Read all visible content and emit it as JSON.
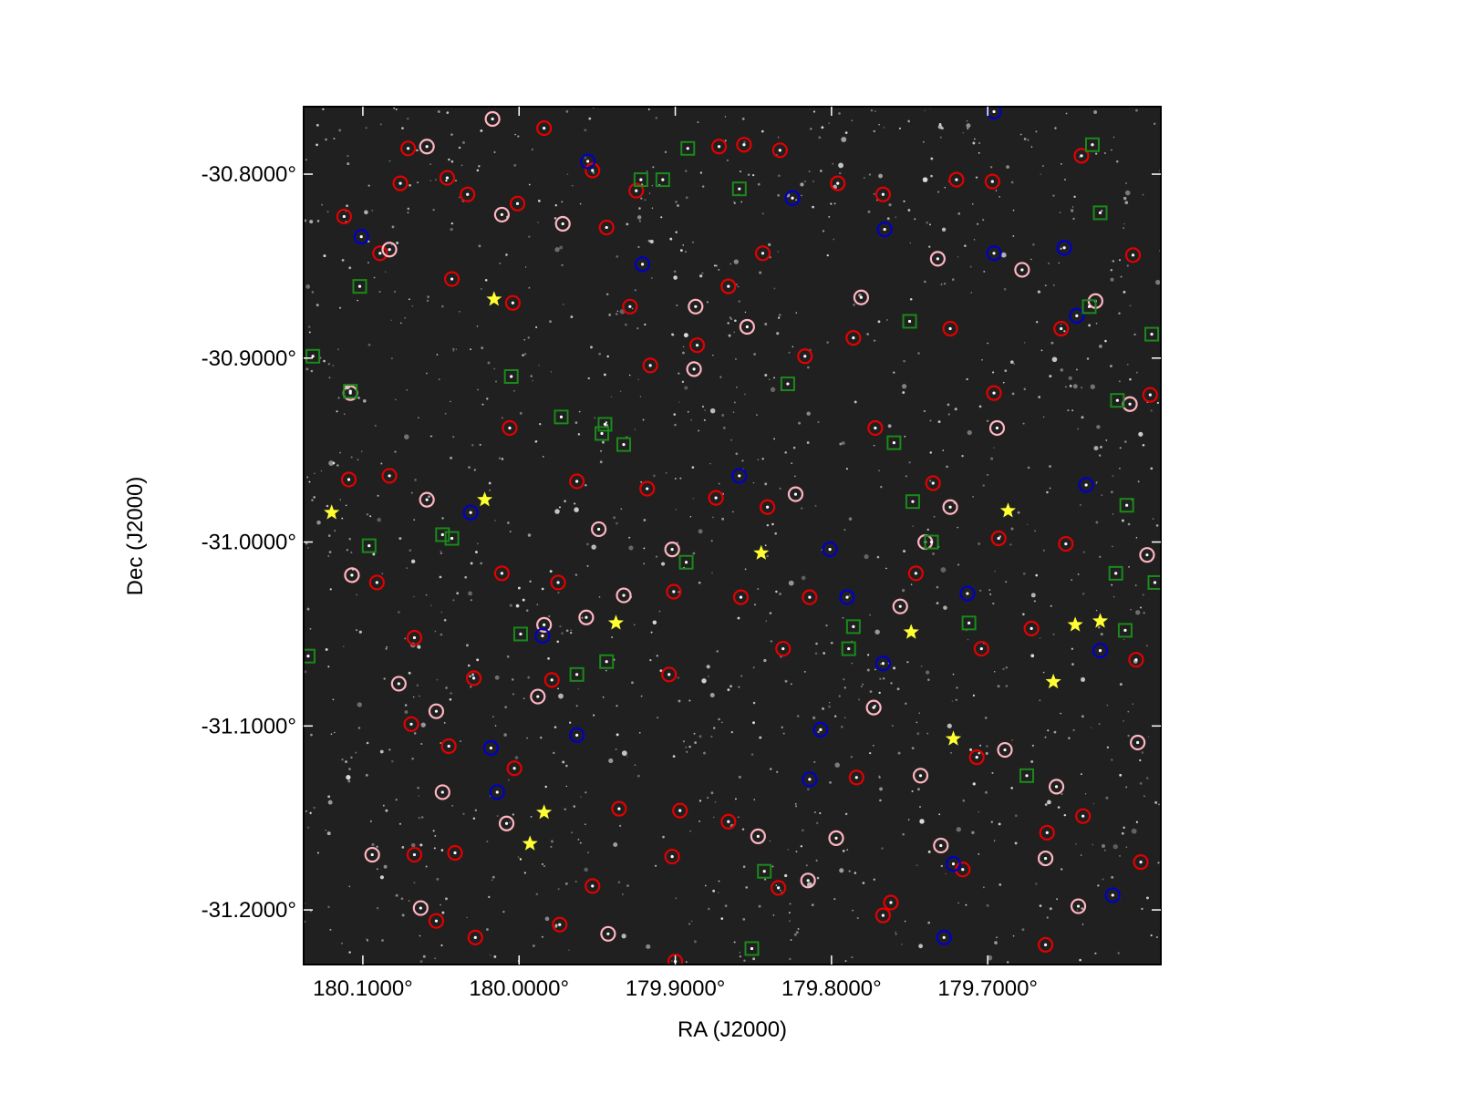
{
  "chart_data": {
    "type": "sky-scatter",
    "xlabel": "RA (J2000)",
    "ylabel": "Dec (J2000)",
    "xlim": [
      180.1379,
      179.5892
    ],
    "ylim": [
      -30.7633,
      -31.2297
    ],
    "xticks": [
      {
        "value": 180.1,
        "label": "180.1000°"
      },
      {
        "value": 180.0,
        "label": "180.0000°"
      },
      {
        "value": 179.9,
        "label": "179.9000°"
      },
      {
        "value": 179.8,
        "label": "179.8000°"
      },
      {
        "value": 179.7,
        "label": "179.7000°"
      }
    ],
    "yticks": [
      {
        "value": -30.8,
        "label": "-30.8000°"
      },
      {
        "value": -30.9,
        "label": "-30.9000°"
      },
      {
        "value": -31.0,
        "label": "-31.0000°"
      },
      {
        "value": -31.1,
        "label": "-31.1000°"
      },
      {
        "value": -31.2,
        "label": "-31.2000°"
      }
    ],
    "series": [
      {
        "marker": "circle",
        "color": "#e30000",
        "x": [
          180.071,
          180.076,
          180.046,
          180.033,
          180.001,
          179.984,
          179.953,
          179.944,
          179.925,
          179.872,
          179.856,
          179.833,
          179.796,
          179.767,
          179.72,
          179.697,
          179.64,
          179.607,
          180.112,
          180.089,
          180.043,
          180.004,
          179.929,
          179.916,
          179.886,
          179.866,
          179.844,
          179.817,
          179.786,
          179.724,
          179.696,
          179.653,
          179.596,
          180.109,
          180.083,
          180.006,
          179.963,
          179.918,
          179.874,
          179.841,
          179.772,
          179.735,
          179.693,
          179.65,
          180.091,
          180.011,
          179.975,
          179.901,
          179.858,
          179.814,
          179.746,
          179.672,
          179.605,
          180.067,
          180.029,
          179.979,
          179.904,
          179.831,
          179.704,
          180.069,
          180.045,
          180.003,
          179.936,
          179.897,
          179.866,
          179.784,
          179.707,
          179.639,
          180.067,
          180.041,
          179.953,
          179.902,
          179.834,
          179.762,
          179.716,
          179.662,
          180.053,
          180.028,
          179.974,
          179.9,
          179.767,
          179.663,
          179.602
        ],
        "y": [
          -30.786,
          -30.805,
          -30.802,
          -30.811,
          -30.816,
          -30.775,
          -30.798,
          -30.829,
          -30.809,
          -30.785,
          -30.784,
          -30.787,
          -30.805,
          -30.811,
          -30.803,
          -30.804,
          -30.79,
          -30.844,
          -30.823,
          -30.843,
          -30.857,
          -30.87,
          -30.872,
          -30.904,
          -30.893,
          -30.861,
          -30.843,
          -30.899,
          -30.889,
          -30.884,
          -30.919,
          -30.884,
          -30.92,
          -30.966,
          -30.964,
          -30.938,
          -30.967,
          -30.971,
          -30.976,
          -30.981,
          -30.938,
          -30.968,
          -30.998,
          -31.001,
          -31.022,
          -31.017,
          -31.022,
          -31.027,
          -31.03,
          -31.03,
          -31.017,
          -31.047,
          -31.064,
          -31.052,
          -31.074,
          -31.075,
          -31.072,
          -31.058,
          -31.058,
          -31.099,
          -31.111,
          -31.123,
          -31.145,
          -31.146,
          -31.152,
          -31.128,
          -31.117,
          -31.149,
          -31.17,
          -31.169,
          -31.187,
          -31.171,
          -31.188,
          -31.196,
          -31.178,
          -31.158,
          -31.206,
          -31.215,
          -31.208,
          -31.228,
          -31.203,
          -31.219,
          -31.174
        ]
      },
      {
        "marker": "circle",
        "color": "#ffb6c1",
        "x": [
          180.059,
          180.017,
          180.011,
          179.972,
          180.083,
          179.887,
          179.888,
          179.854,
          179.781,
          179.732,
          179.678,
          179.694,
          179.631,
          179.609,
          180.108,
          180.059,
          179.949,
          179.902,
          179.823,
          179.74,
          179.724,
          179.598,
          180.107,
          179.984,
          179.957,
          179.933,
          179.756,
          179.773,
          180.053,
          180.077,
          179.988,
          180.049,
          180.094,
          180.008,
          179.847,
          179.797,
          179.743,
          179.689,
          179.656,
          179.663,
          179.815,
          180.063,
          179.943,
          179.642,
          179.604,
          179.73
        ],
        "y": [
          -30.785,
          -30.77,
          -30.822,
          -30.827,
          -30.841,
          -30.872,
          -30.906,
          -30.883,
          -30.867,
          -30.846,
          -30.852,
          -30.938,
          -30.869,
          -30.925,
          -30.919,
          -30.977,
          -30.993,
          -31.004,
          -30.974,
          -31.0,
          -30.981,
          -31.007,
          -31.018,
          -31.045,
          -31.041,
          -31.029,
          -31.035,
          -31.09,
          -31.092,
          -31.077,
          -31.084,
          -31.136,
          -31.17,
          -31.153,
          -31.16,
          -31.161,
          -31.127,
          -31.113,
          -31.133,
          -31.172,
          -31.184,
          -31.199,
          -31.213,
          -31.198,
          -31.109,
          -31.165
        ]
      },
      {
        "marker": "circle",
        "color": "#0000c8",
        "x": [
          180.101,
          179.956,
          179.921,
          179.825,
          179.766,
          179.651,
          179.696,
          179.643,
          179.637,
          179.859,
          180.031,
          179.801,
          179.79,
          179.713,
          179.767,
          179.628,
          179.963,
          179.807,
          180.018,
          180.014,
          179.814,
          179.722,
          179.62,
          179.728,
          179.696,
          179.985
        ],
        "y": [
          -30.834,
          -30.793,
          -30.849,
          -30.813,
          -30.83,
          -30.84,
          -30.843,
          -30.877,
          -30.969,
          -30.964,
          -30.984,
          -31.004,
          -31.03,
          -31.028,
          -31.066,
          -31.059,
          -31.105,
          -31.102,
          -31.112,
          -31.136,
          -31.129,
          -31.175,
          -31.192,
          -31.215,
          -30.766,
          -31.051
        ]
      },
      {
        "marker": "square",
        "color": "#1a8a1a",
        "x": [
          179.892,
          179.922,
          179.908,
          179.859,
          179.633,
          179.628,
          180.102,
          179.635,
          179.75,
          179.595,
          180.132,
          180.108,
          180.005,
          179.828,
          179.973,
          179.945,
          179.947,
          179.933,
          179.76,
          179.617,
          179.748,
          179.611,
          180.096,
          180.049,
          180.043,
          179.736,
          179.618,
          179.593,
          179.999,
          179.786,
          179.789,
          179.712,
          179.612,
          179.944,
          179.963,
          180.135,
          179.675,
          179.843,
          179.851,
          179.893
        ],
        "y": [
          -30.786,
          -30.803,
          -30.803,
          -30.808,
          -30.784,
          -30.821,
          -30.861,
          -30.872,
          -30.88,
          -30.887,
          -30.899,
          -30.918,
          -30.91,
          -30.914,
          -30.932,
          -30.936,
          -30.941,
          -30.947,
          -30.946,
          -30.923,
          -30.978,
          -30.98,
          -31.002,
          -30.996,
          -30.998,
          -31.0,
          -31.017,
          -31.022,
          -31.05,
          -31.046,
          -31.058,
          -31.044,
          -31.048,
          -31.065,
          -31.072,
          -31.062,
          -31.127,
          -31.179,
          -31.221,
          -31.011
        ]
      },
      {
        "marker": "star",
        "color": "#ffff33",
        "x": [
          180.016,
          180.12,
          180.022,
          179.687,
          179.845,
          179.938,
          179.749,
          179.644,
          179.628,
          179.658,
          179.722,
          179.984,
          179.993
        ],
        "y": [
          -30.868,
          -30.984,
          -30.977,
          -30.983,
          -31.006,
          -31.044,
          -31.049,
          -31.045,
          -31.043,
          -31.076,
          -31.107,
          -31.147,
          -31.164
        ]
      }
    ]
  }
}
